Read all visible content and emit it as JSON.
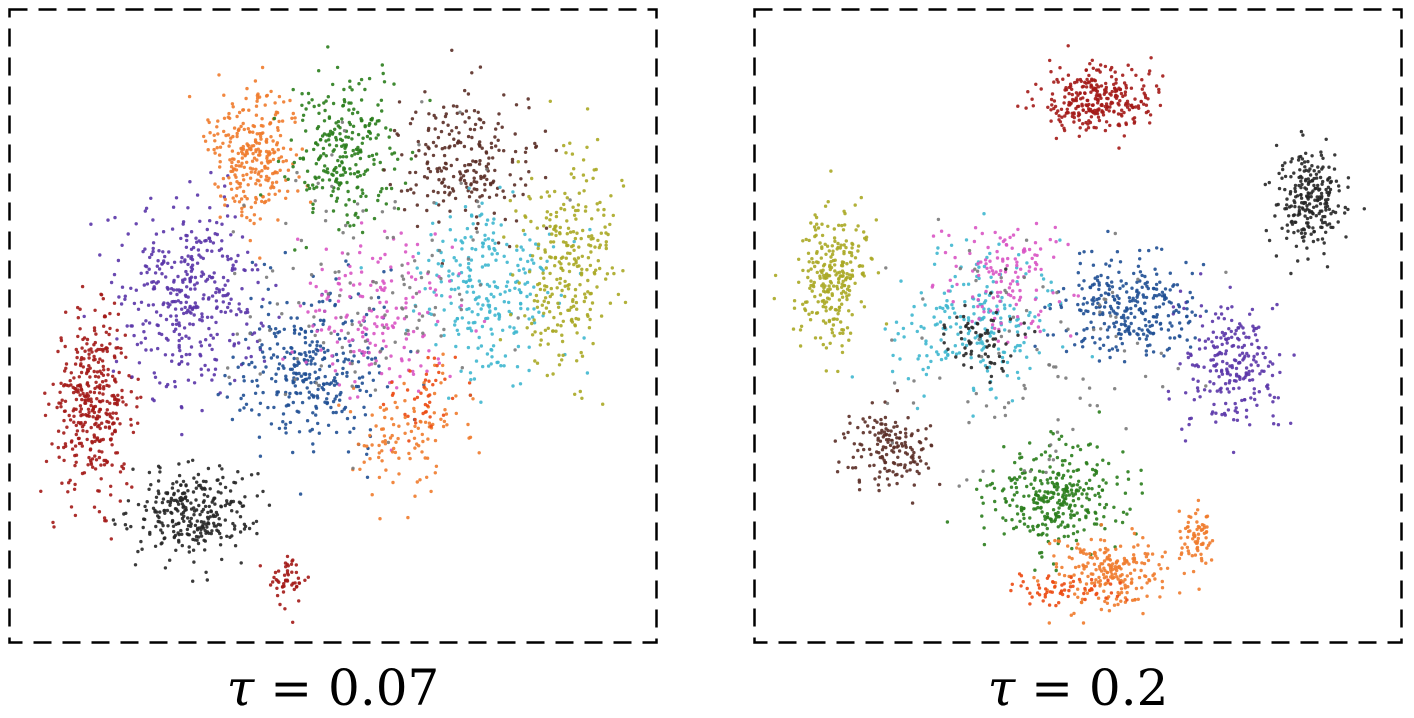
{
  "captions": [
    {
      "symbol": "τ",
      "rest": " = 0.07"
    },
    {
      "symbol": "τ",
      "rest": " = 0.2"
    }
  ],
  "colors": {
    "red": "#a31a17",
    "orange": "#f07b2c",
    "green": "#2a7d1c",
    "brown": "#5a2e26",
    "purple": "#5a35a8",
    "blue": "#1f4f94",
    "cyan": "#3fb7cf",
    "olive": "#aaa825",
    "pink": "#d955c4",
    "black": "#262626",
    "gray": "#7a7a7a",
    "red_orange": "#ec4a12",
    "border": "#000000"
  },
  "chart_data": [
    {
      "type": "scatter",
      "title": "",
      "xlabel": "",
      "ylabel": "",
      "xlim": [
        0,
        1
      ],
      "ylim": [
        0,
        1
      ],
      "grid": false,
      "legend": "none",
      "frame": "dashed",
      "clusters": [
        {
          "color": "red",
          "center": [
            0.11,
            0.37
          ],
          "spread": [
            0.06,
            0.13
          ],
          "count": 380
        },
        {
          "color": "black",
          "center": [
            0.27,
            0.19
          ],
          "spread": [
            0.09,
            0.07
          ],
          "count": 300
        },
        {
          "color": "red",
          "center": [
            0.43,
            0.08
          ],
          "spread": [
            0.03,
            0.04
          ],
          "count": 50
        },
        {
          "color": "purple",
          "center": [
            0.27,
            0.55
          ],
          "spread": [
            0.1,
            0.14
          ],
          "count": 380
        },
        {
          "color": "orange",
          "center": [
            0.37,
            0.79
          ],
          "spread": [
            0.07,
            0.1
          ],
          "count": 280
        },
        {
          "color": "green",
          "center": [
            0.52,
            0.79
          ],
          "spread": [
            0.08,
            0.11
          ],
          "count": 270
        },
        {
          "color": "brown",
          "center": [
            0.71,
            0.78
          ],
          "spread": [
            0.1,
            0.1
          ],
          "count": 230
        },
        {
          "color": "cyan",
          "center": [
            0.75,
            0.56
          ],
          "spread": [
            0.1,
            0.13
          ],
          "count": 260
        },
        {
          "color": "olive",
          "center": [
            0.88,
            0.6
          ],
          "spread": [
            0.07,
            0.16
          ],
          "count": 280
        },
        {
          "color": "blue",
          "center": [
            0.47,
            0.43
          ],
          "spread": [
            0.11,
            0.13
          ],
          "count": 330
        },
        {
          "color": "pink",
          "center": [
            0.57,
            0.52
          ],
          "spread": [
            0.11,
            0.12
          ],
          "count": 180
        },
        {
          "color": "orange",
          "center": [
            0.62,
            0.32
          ],
          "spread": [
            0.1,
            0.09
          ],
          "count": 110
        },
        {
          "color": "red_orange",
          "center": [
            0.65,
            0.38
          ],
          "spread": [
            0.06,
            0.06
          ],
          "count": 40
        },
        {
          "color": "gray",
          "center": [
            0.55,
            0.55
          ],
          "spread": [
            0.2,
            0.2
          ],
          "count": 130
        }
      ]
    },
    {
      "type": "scatter",
      "title": "",
      "xlabel": "",
      "ylabel": "",
      "xlim": [
        0,
        1
      ],
      "ylim": [
        0,
        1
      ],
      "grid": false,
      "legend": "none",
      "frame": "dashed",
      "clusters": [
        {
          "color": "red",
          "center": [
            0.53,
            0.88
          ],
          "spread": [
            0.08,
            0.05
          ],
          "count": 300
        },
        {
          "color": "black",
          "center": [
            0.88,
            0.71
          ],
          "spread": [
            0.05,
            0.08
          ],
          "count": 240
        },
        {
          "color": "olive",
          "center": [
            0.1,
            0.58
          ],
          "spread": [
            0.05,
            0.1
          ],
          "count": 260
        },
        {
          "color": "purple",
          "center": [
            0.75,
            0.43
          ],
          "spread": [
            0.07,
            0.1
          ],
          "count": 230
        },
        {
          "color": "blue",
          "center": [
            0.58,
            0.53
          ],
          "spread": [
            0.1,
            0.08
          ],
          "count": 290
        },
        {
          "color": "cyan",
          "center": [
            0.33,
            0.5
          ],
          "spread": [
            0.12,
            0.1
          ],
          "count": 220
        },
        {
          "color": "pink",
          "center": [
            0.38,
            0.58
          ],
          "spread": [
            0.1,
            0.08
          ],
          "count": 130
        },
        {
          "color": "brown",
          "center": [
            0.19,
            0.3
          ],
          "spread": [
            0.06,
            0.06
          ],
          "count": 160
        },
        {
          "color": "black",
          "center": [
            0.34,
            0.48
          ],
          "spread": [
            0.06,
            0.05
          ],
          "count": 70
        },
        {
          "color": "green",
          "center": [
            0.46,
            0.22
          ],
          "spread": [
            0.1,
            0.08
          ],
          "count": 330
        },
        {
          "color": "orange",
          "center": [
            0.55,
            0.09
          ],
          "spread": [
            0.08,
            0.05
          ],
          "count": 220
        },
        {
          "color": "orange",
          "center": [
            0.69,
            0.15
          ],
          "spread": [
            0.03,
            0.05
          ],
          "count": 70
        },
        {
          "color": "red_orange",
          "center": [
            0.47,
            0.06
          ],
          "spread": [
            0.09,
            0.03
          ],
          "count": 60
        },
        {
          "color": "gray",
          "center": [
            0.45,
            0.45
          ],
          "spread": [
            0.2,
            0.2
          ],
          "count": 90
        }
      ]
    }
  ]
}
